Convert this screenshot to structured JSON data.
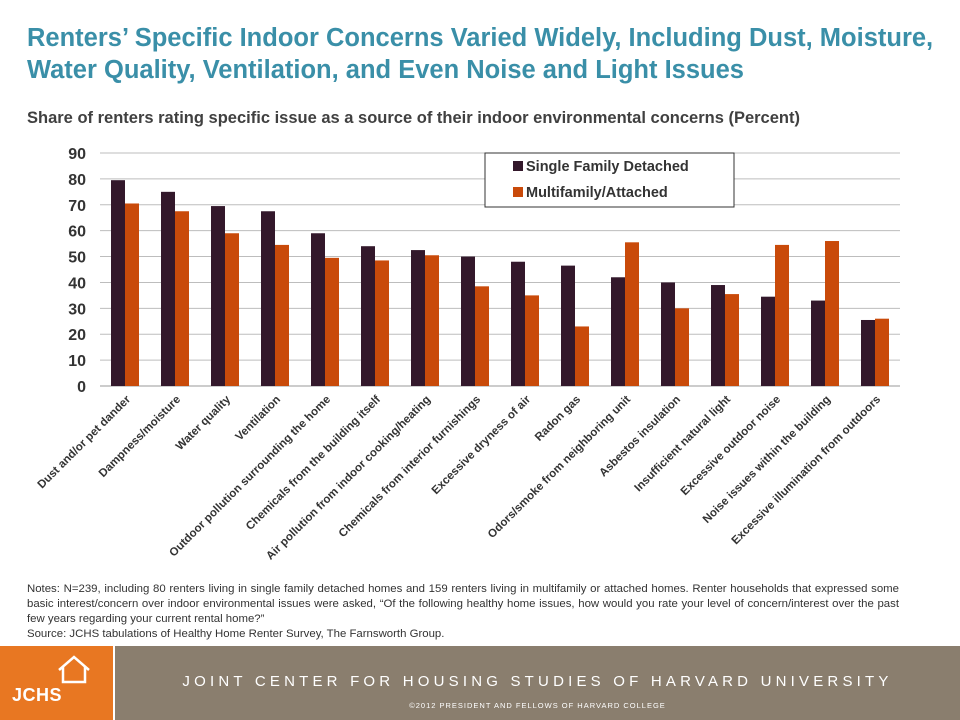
{
  "title": "Renters’ Specific Indoor Concerns Varied Widely, Including Dust, Moisture, Water Quality, Ventilation, and Even Noise and Light Issues",
  "subtitle": "Share of renters rating specific issue as a source of their indoor environmental concerns (Percent)",
  "colors": {
    "title": "#3a8fa8",
    "series1": "#33182b",
    "series2": "#c94a0a",
    "footer_orange": "#e87722",
    "footer_taupe": "#8a7e6e"
  },
  "chart_data": {
    "type": "bar",
    "title": "",
    "xlabel": "",
    "ylabel": "",
    "ylim": [
      0,
      90
    ],
    "yticks": [
      0,
      10,
      20,
      30,
      40,
      50,
      60,
      70,
      80,
      90
    ],
    "grid": true,
    "legend_position": "top-right",
    "categories": [
      "Dust and/or pet dander",
      "Dampness/moisture",
      "Water quality",
      "Ventilation",
      "Outdoor pollution surrounding the home",
      "Chemicals from the building itself",
      "Air pollution from indoor cooking/heating",
      "Chemicals from interior furnishings",
      "Excessive dryness of air",
      "Radon gas",
      "Odors/smoke from neighboring unit",
      "Asbestos insulation",
      "Insufficient natural light",
      "Excessive outdoor noise",
      "Noise issues within the building",
      "Excessive illumination from outdoors"
    ],
    "series": [
      {
        "name": "Single Family Detached",
        "color": "#33182b",
        "values": [
          79.5,
          75,
          69.5,
          67.5,
          59,
          54,
          52.5,
          50,
          48,
          46.5,
          42,
          40,
          39,
          34.5,
          33,
          25.5
        ]
      },
      {
        "name": "Multifamily/Attached",
        "color": "#c94a0a",
        "values": [
          70.5,
          67.5,
          59,
          54.5,
          49.5,
          48.5,
          50.5,
          38.5,
          35,
          23,
          55.5,
          30,
          35.5,
          54.5,
          56,
          26
        ]
      }
    ]
  },
  "notes": {
    "text": "Notes: N=239, including 80 renters living in single family detached homes and 159 renters living in multifamily or attached homes. Renter households that expressed some basic interest/concern over indoor environmental  issues were asked, “Of the following healthy home issues, how would you rate your level of concern/interest over the past few years regarding your current rental home?”",
    "source": "Source: JCHS tabulations of Healthy Home Renter Survey, The Farnsworth Group."
  },
  "footer": {
    "logo_text": "JCHS",
    "org_name": "JOINT CENTER FOR HOUSING STUDIES OF HARVARD UNIVERSITY",
    "copyright": "©2012  PRESIDENT  AND  FELLOWS  OF  HARVARD  COLLEGE"
  }
}
